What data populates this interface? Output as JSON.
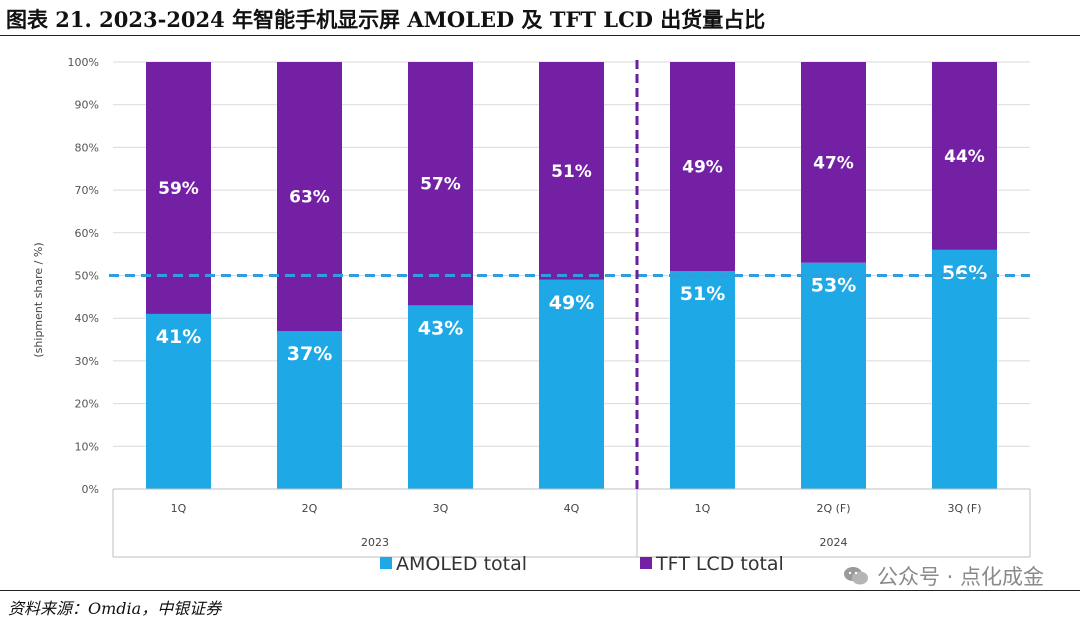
{
  "figure_title": "图表 21. 2023-2024 年智能手机显示屏 AMOLED 及 TFT LCD 出货量占比",
  "source": "资料来源：Omdia，中银证券",
  "watermark": "公众号 · 点化成金",
  "chart_data": {
    "type": "bar",
    "stacked": true,
    "ylabel": "(shipment share / %)",
    "ylim": [
      0,
      100
    ],
    "yticks": [
      "0%",
      "10%",
      "20%",
      "30%",
      "40%",
      "50%",
      "60%",
      "70%",
      "80%",
      "90%",
      "100%"
    ],
    "categories": [
      "1Q",
      "2Q",
      "3Q",
      "4Q",
      "1Q",
      "2Q (F)",
      "3Q (F)"
    ],
    "groups": [
      {
        "label": "2023",
        "count": 4
      },
      {
        "label": "2024",
        "count": 3
      }
    ],
    "series": [
      {
        "name": "AMOLED total",
        "color": "#1ea8e6",
        "values": [
          41,
          37,
          43,
          49,
          51,
          53,
          56
        ],
        "labels": [
          "41%",
          "37%",
          "43%",
          "49%",
          "51%",
          "53%",
          "56%"
        ]
      },
      {
        "name": "TFT LCD total",
        "color": "#7320a5",
        "values": [
          59,
          63,
          57,
          51,
          49,
          47,
          44
        ],
        "labels": [
          "59%",
          "63%",
          "57%",
          "51%",
          "49%",
          "47%",
          "44%"
        ]
      }
    ],
    "reference_line": {
      "value": 50,
      "color": "#2e9fdc",
      "style": "dashed"
    },
    "divider_color": "#6a1f9a",
    "grid": true,
    "legend_position": "bottom"
  }
}
